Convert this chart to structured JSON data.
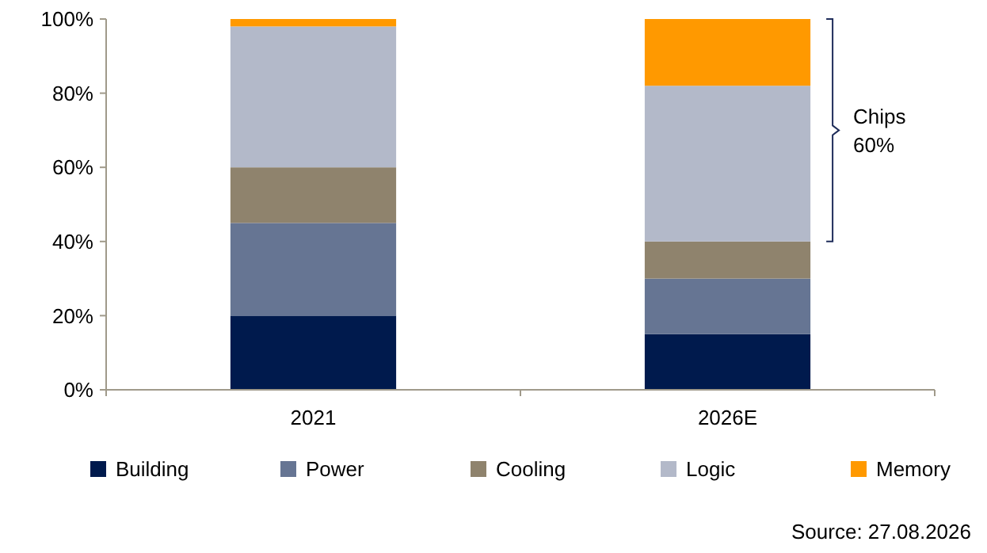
{
  "chart_data": {
    "type": "bar",
    "stacked": true,
    "categories": [
      "2021",
      "2026E"
    ],
    "series": [
      {
        "name": "Building",
        "color": "#001a4d",
        "values": [
          20,
          15
        ]
      },
      {
        "name": "Power",
        "color": "#667593",
        "values": [
          25,
          15
        ]
      },
      {
        "name": "Cooling",
        "color": "#8f836d",
        "values": [
          15,
          10
        ]
      },
      {
        "name": "Logic",
        "color": "#b3b9c9",
        "values": [
          38,
          42
        ]
      },
      {
        "name": "Memory",
        "color": "#ff9900",
        "values": [
          2,
          18
        ]
      }
    ],
    "ylim": [
      0,
      100
    ],
    "yticks": [
      {
        "value": 0,
        "label": "0%"
      },
      {
        "value": 20,
        "label": "20%"
      },
      {
        "value": 40,
        "label": "40%"
      },
      {
        "value": 60,
        "label": "60%"
      },
      {
        "value": 80,
        "label": "80%"
      },
      {
        "value": 100,
        "label": "100%"
      }
    ],
    "grid": false,
    "legend": "bottom",
    "annotations": [
      "Chips 60%",
      "Source: 27.08.2026"
    ]
  }
}
